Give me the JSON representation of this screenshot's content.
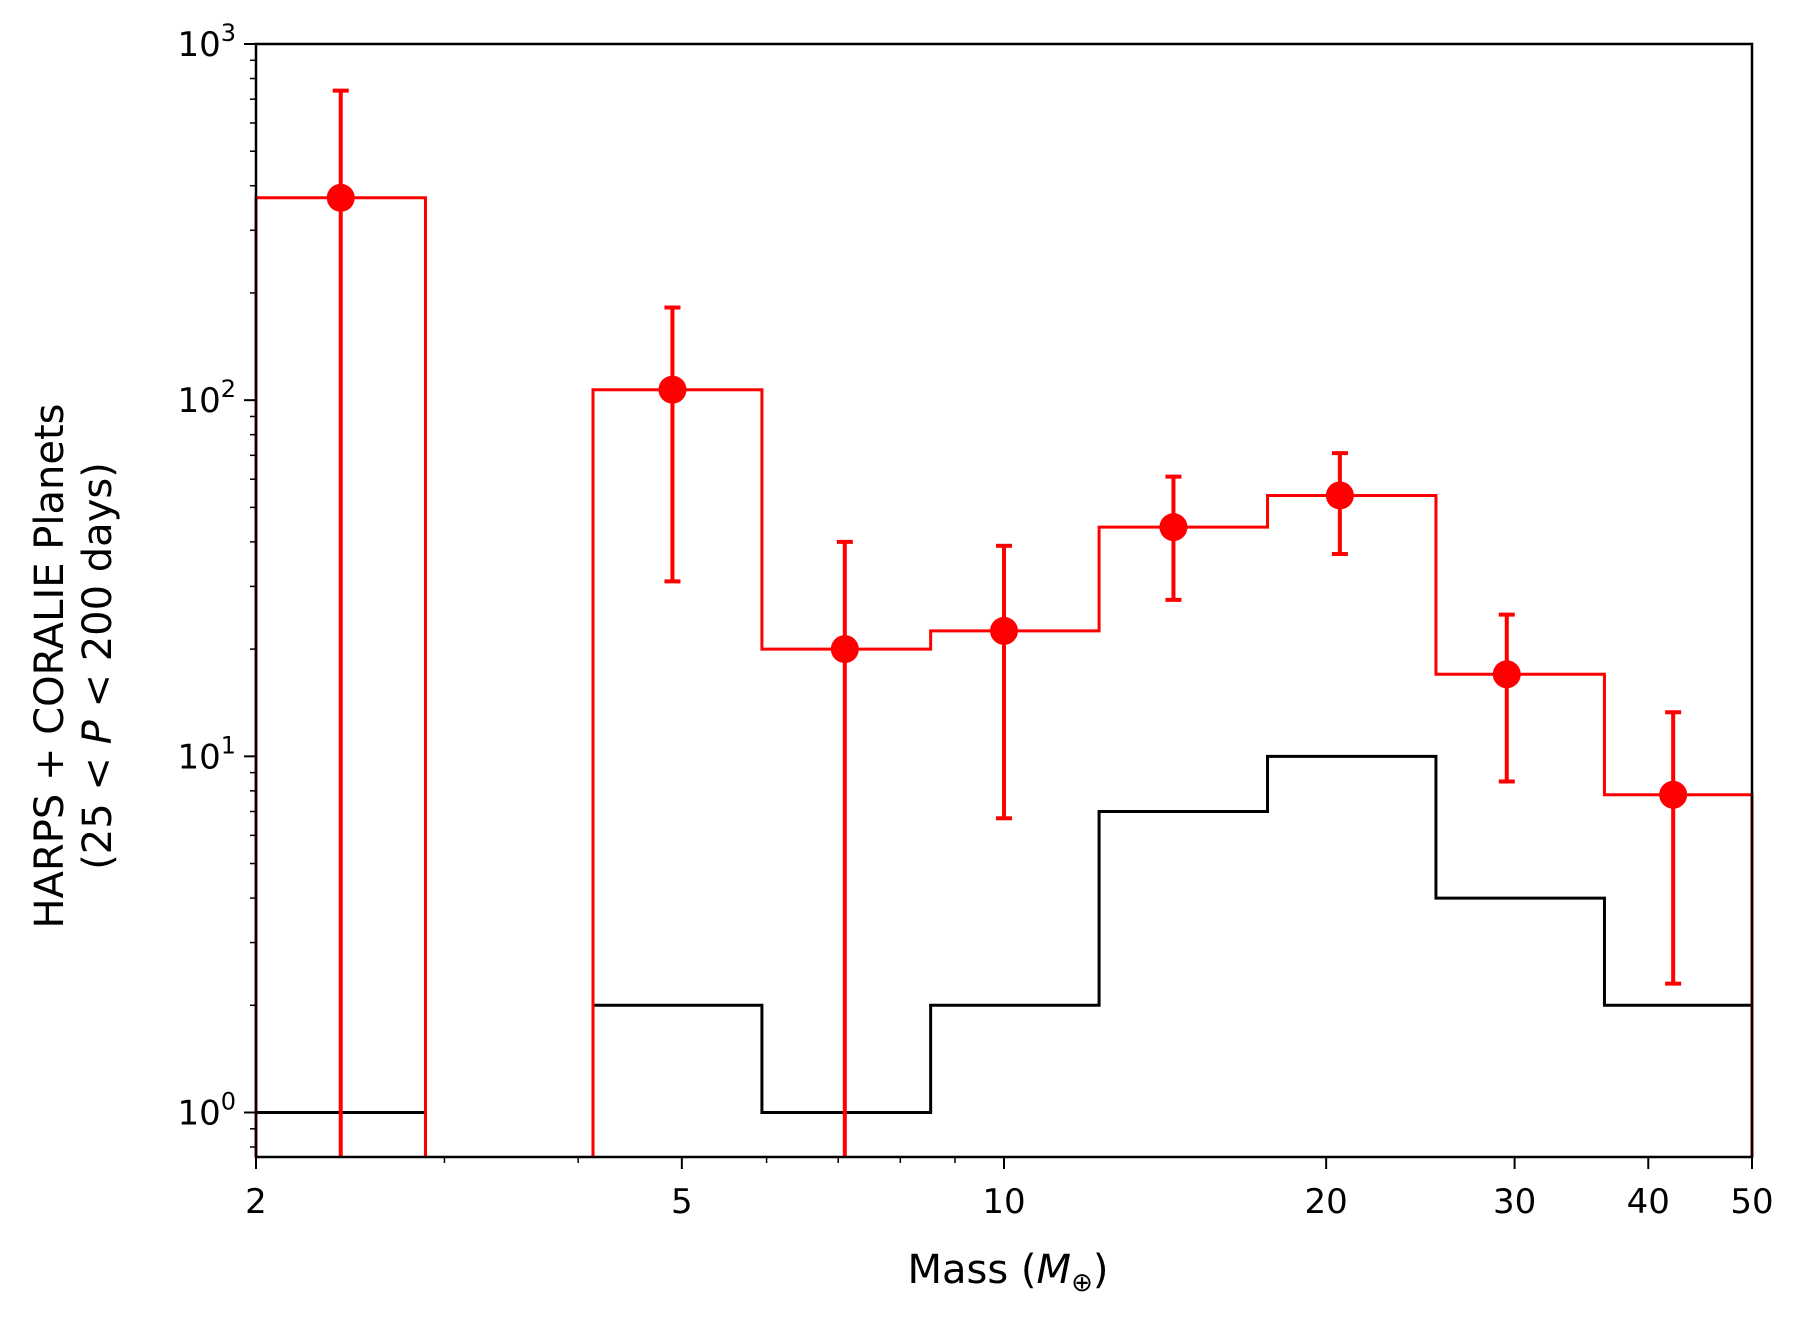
{
  "chart_data": {
    "type": "histogram",
    "xscale": "log",
    "yscale": "log",
    "xlim": [
      2,
      50
    ],
    "ylim": [
      0.75,
      1000
    ],
    "xlabel": {
      "pre": "Mass (",
      "sym": "M",
      "sub": "⊕",
      "post": ")"
    },
    "ylabel": {
      "line1": "HARPS + CORALIE Planets",
      "line2_pre": "(25 < ",
      "line2_sym": "P",
      "line2_post": " < 200 days)"
    },
    "x_ticks": [
      {
        "value": 2,
        "label": "2"
      },
      {
        "value": 5,
        "label": "5"
      },
      {
        "value": 10,
        "label": "10"
      },
      {
        "value": 20,
        "label": "20"
      },
      {
        "value": 30,
        "label": "30"
      },
      {
        "value": 40,
        "label": "40"
      },
      {
        "value": 50,
        "label": "50"
      }
    ],
    "y_ticks": [
      {
        "value": 1,
        "base": "10",
        "exp": "0"
      },
      {
        "value": 10,
        "base": "10",
        "exp": "1"
      },
      {
        "value": 100,
        "base": "10",
        "exp": "2"
      },
      {
        "value": 1000,
        "base": "10",
        "exp": "3"
      }
    ],
    "bin_edges": [
      2,
      2.88,
      4.13,
      5.94,
      8.54,
      12.27,
      17.63,
      25.33,
      36.4,
      50
    ],
    "series": [
      {
        "color": "#ff0000",
        "style": "step",
        "values": [
          370,
          null,
          107,
          20,
          22.5,
          44,
          54,
          17,
          7.8
        ],
        "points": [
          {
            "x": 2.4,
            "y": 370,
            "err_low": 0.75,
            "err_high": 740
          },
          {
            "x": 4.9,
            "y": 107,
            "err_low": 31,
            "err_high": 182
          },
          {
            "x": 7.1,
            "y": 20,
            "err_low": 0.75,
            "err_high": 40
          },
          {
            "x": 10.0,
            "y": 22.5,
            "err_low": 6.7,
            "err_high": 39
          },
          {
            "x": 14.4,
            "y": 44,
            "err_low": 27.5,
            "err_high": 61
          },
          {
            "x": 20.6,
            "y": 54,
            "err_low": 37,
            "err_high": 71
          },
          {
            "x": 29.5,
            "y": 17,
            "err_low": 8.5,
            "err_high": 25
          },
          {
            "x": 42.2,
            "y": 7.8,
            "err_low": 2.3,
            "err_high": 13.3
          }
        ]
      },
      {
        "color": "#000000",
        "style": "step",
        "values": [
          1,
          null,
          2,
          1,
          2,
          7,
          10,
          4,
          2
        ]
      }
    ]
  }
}
